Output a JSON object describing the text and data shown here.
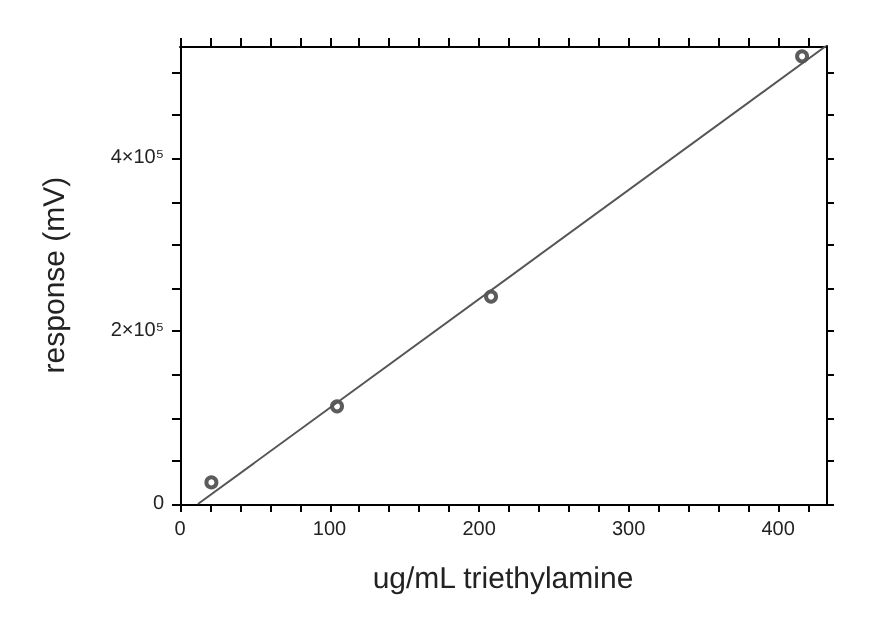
{
  "chart_data": {
    "type": "scatter",
    "xlabel": "ug/mL triethylamine",
    "ylabel": "response (mV)",
    "xlim": [
      0,
      432
    ],
    "ylim": [
      0,
      530000
    ],
    "xticks": [
      0,
      100,
      200,
      300,
      400
    ],
    "yticks": [
      0,
      {
        "value": 200000,
        "label": "2×10⁵"
      },
      {
        "value": 400000,
        "label": "4×10⁵"
      }
    ],
    "grid": false,
    "series": [
      {
        "color": "#333333",
        "marker": "circle",
        "x": [
          21,
          105,
          208,
          416
        ],
        "values": [
          25000,
          113000,
          240000,
          518000
        ]
      },
      {
        "type": "line",
        "color": "#555555",
        "marker": "none",
        "line_style": "solid",
        "x": [
          12,
          432
        ],
        "values": [
          0,
          530000
        ]
      }
    ]
  }
}
